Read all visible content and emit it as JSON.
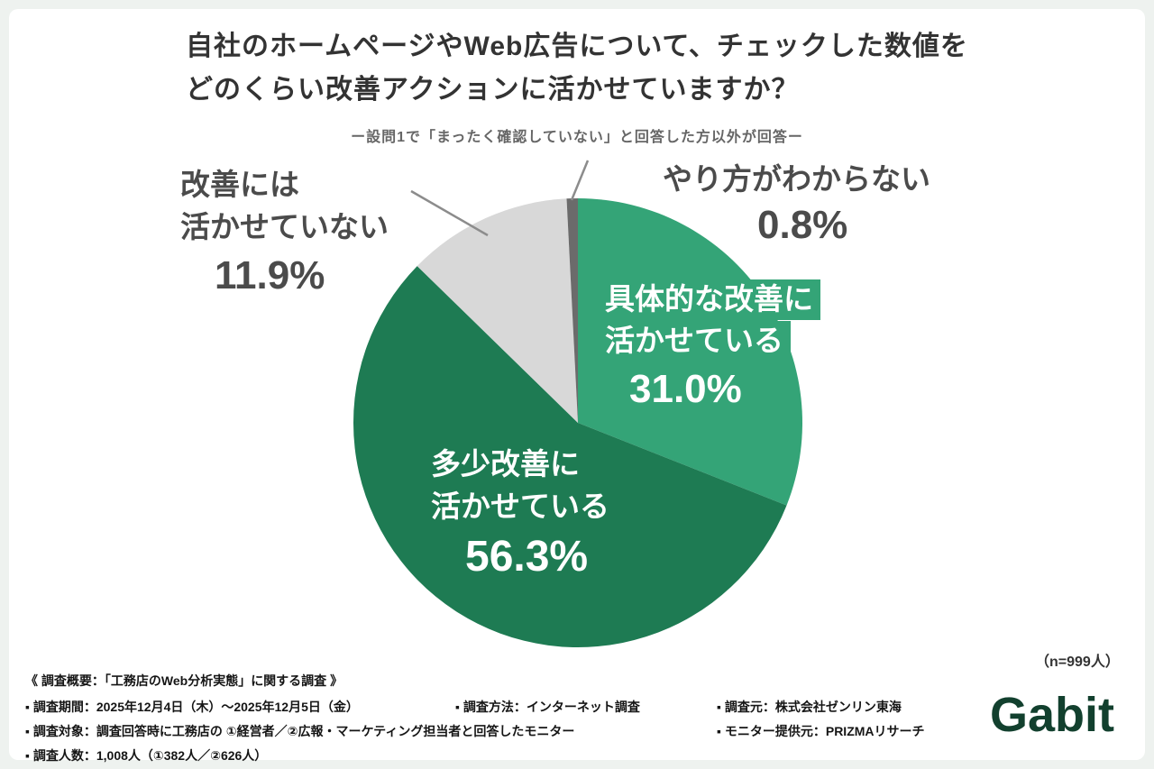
{
  "header": {
    "title_line1": "自社のホームページやWeb広告について、チェックした数値を",
    "title_line2": "どのくらい改善アクションに活かせていますか？",
    "subtitle": "ー設問1で「まったく確認していない」と回答した方以外が回答ー"
  },
  "chart_data": {
    "type": "pie",
    "title": "自社のホームページやWeb広告について、チェックした数値をどのくらい改善アクションに活かせていますか？",
    "subtitle": "ー設問1で「まったく確認していない」と回答した方以外が回答ー",
    "direction": "clockwise",
    "start_angle_deg": 0,
    "slices": [
      {
        "label": "具体的な改善に活かせている",
        "value_pct": 31.0,
        "pct_text": "31.0%",
        "color": "#34A477",
        "label_lines": [
          "具体的な改善に",
          "活かせている"
        ]
      },
      {
        "label": "多少改善に活かせている",
        "value_pct": 56.3,
        "pct_text": "56.3%",
        "color": "#1E7B53",
        "label_lines": [
          "多少改善に",
          "活かせている"
        ]
      },
      {
        "label": "改善には活かせていない",
        "value_pct": 11.9,
        "pct_text": "11.9%",
        "color": "#D8D8D8",
        "label_lines": [
          "改善には",
          "活かせていない"
        ]
      },
      {
        "label": "やり方がわからない",
        "value_pct": 0.8,
        "pct_text": "0.8%",
        "color": "#6B6B6B",
        "label_lines": [
          "やり方がわからない"
        ]
      }
    ],
    "n_note": "（n=999人）"
  },
  "footer": {
    "overview": "《 調査概要：「工務店のWeb分析実態」に関する調査 》",
    "period": "▪ 調査期間：2025年12月4日（木）〜2025年12月5日（金）",
    "method": "▪ 調査方法：インターネット調査",
    "source": "▪ 調査元：株式会社ゼンリン東海",
    "target": "▪ 調査対象：調査回答時に工務店の ①経営者／②広報・マーケティング担当者と回答したモニター",
    "monitor": "▪ モニター提供元：PRIZMAリサーチ",
    "count": "▪ 調査人数：1,008人（①382人／②626人）"
  },
  "logo_text": "Gabit",
  "colors": {
    "green_light": "#34A477",
    "green_dark": "#1E7B53",
    "gray_slice": "#D8D8D8",
    "gray_dark_slice": "#6B6B6B",
    "logo_green": "#12402E",
    "background": "#EEF2EF"
  }
}
